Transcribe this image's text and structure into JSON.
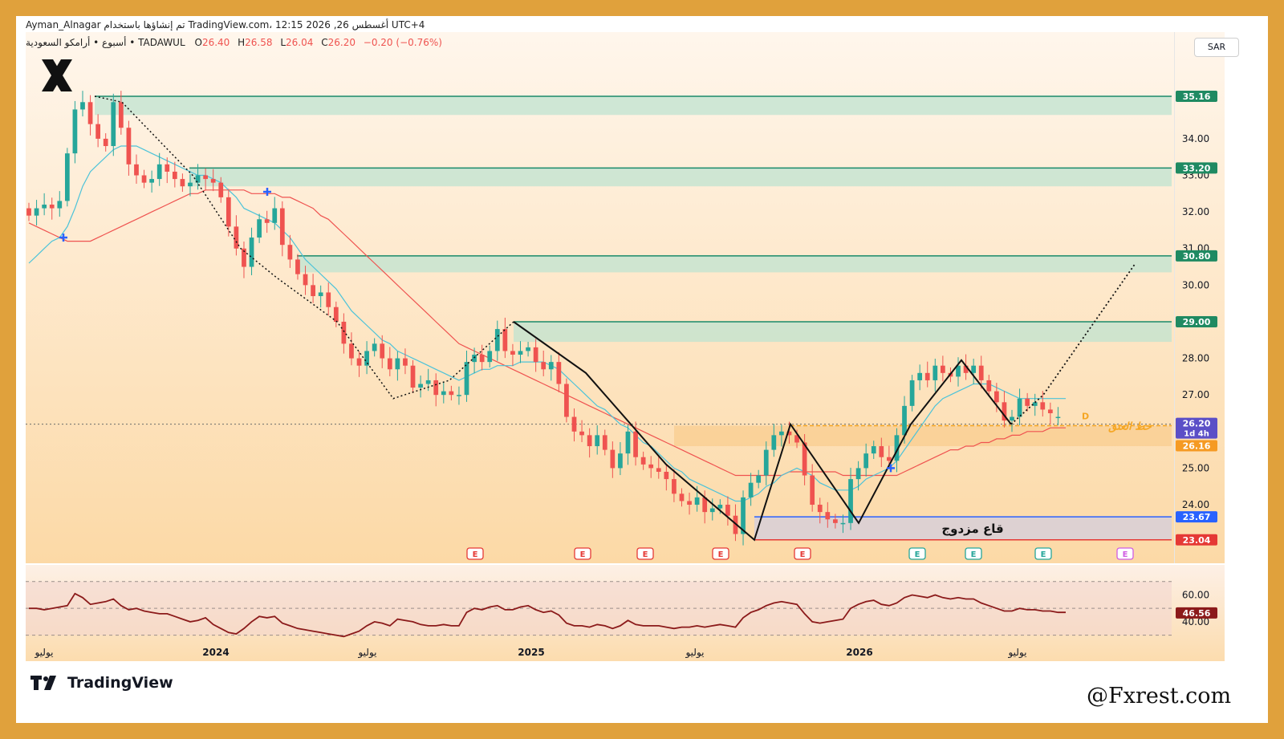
{
  "header": {
    "line1": "Ayman_Alnagar تم إنشاؤها باستخدام TradingView.com، 12:15 2026 ,26 أغسطس UTC+4",
    "symbol": "أسبوع • أرامكو السعودية • TADAWUL",
    "o_label": "O",
    "o_value": "26.40",
    "h_label": "H",
    "h_value": "26.58",
    "l_label": "L",
    "l_value": "26.04",
    "c_label": "C",
    "c_value": "26.20",
    "change": "−0.20 (−0.76%)"
  },
  "currency": "SAR",
  "brand": {
    "name": "TradingView",
    "watermark": "@Fxrest.com"
  },
  "colors": {
    "frame": "#e0a13c",
    "up": "#26a69a",
    "down": "#ef5350",
    "zone": "#bfe3d0",
    "zone_line": "#1a8a6a",
    "ma_fast": "#4cc3d9",
    "ma_slow": "#ef5350",
    "rsi": "#8b1a1a",
    "support_blue": "#2962ff",
    "support_red": "#e53935",
    "neck": "#f5a623"
  },
  "chart_data": [
    {
      "type": "candlestick",
      "ylim": [
        22.4,
        36.3
      ],
      "y_ticks": [
        "34.00",
        "33.00",
        "32.00",
        "31.00",
        "30.00",
        "29.00",
        "28.00",
        "27.00",
        "26.00",
        "25.00",
        "24.00"
      ],
      "x_ticks": [
        "يوليو",
        "2024",
        "يوليو",
        "2025",
        "يوليو",
        "2026",
        "يوليو"
      ],
      "zones": [
        {
          "top": 35.16,
          "bottom": 34.65,
          "label": "35.16"
        },
        {
          "top": 33.2,
          "bottom": 32.7,
          "label": "33.20"
        },
        {
          "top": 30.8,
          "bottom": 30.35,
          "label": "30.80"
        },
        {
          "top": 29.0,
          "bottom": 28.45,
          "label": "29.00"
        }
      ],
      "price_labels": [
        {
          "value": 26.2,
          "text": "26.20",
          "sub": "1d 4h",
          "color": "#5b4fc7"
        },
        {
          "value": 26.16,
          "text": "26.16",
          "color": "#f59a23"
        },
        {
          "value": 23.67,
          "text": "23.67",
          "color": "#2962ff"
        },
        {
          "value": 23.04,
          "text": "23.04",
          "color": "#e53935"
        }
      ],
      "annotations": {
        "double_bottom": "قاع مزدوج",
        "neckline": "خط العنق",
        "d_marker": "D"
      },
      "earnings_marker": "E",
      "closes": [
        31.9,
        32.1,
        32.2,
        32.1,
        32.3,
        33.6,
        34.8,
        35.0,
        34.4,
        34.0,
        33.8,
        35.0,
        34.3,
        33.3,
        33.0,
        32.8,
        32.9,
        33.3,
        33.1,
        32.9,
        32.7,
        32.8,
        33.0,
        32.9,
        32.8,
        32.4,
        31.6,
        31.0,
        30.5,
        31.3,
        31.8,
        31.7,
        32.1,
        31.1,
        30.7,
        30.3,
        30.0,
        29.7,
        29.8,
        29.4,
        29.0,
        28.4,
        28.0,
        27.8,
        28.2,
        28.4,
        28.0,
        27.7,
        28.0,
        27.8,
        27.2,
        27.3,
        27.4,
        27.0,
        27.1,
        27.0,
        27.0,
        27.9,
        28.1,
        27.9,
        28.2,
        28.8,
        28.2,
        28.1,
        28.2,
        28.3,
        27.9,
        27.7,
        27.9,
        27.3,
        26.4,
        26.0,
        25.9,
        25.6,
        25.9,
        25.5,
        25.0,
        25.4,
        26.0,
        25.3,
        25.1,
        25.0,
        24.9,
        24.7,
        24.3,
        24.1,
        24.0,
        24.2,
        23.8,
        23.9,
        24.0,
        23.7,
        23.2,
        24.2,
        24.6,
        24.8,
        25.5,
        25.9,
        26.0,
        25.9,
        25.7,
        24.8,
        24.0,
        23.8,
        23.6,
        23.5,
        23.5,
        24.7,
        25.0,
        25.4,
        25.6,
        25.3,
        25.2,
        25.9,
        26.7,
        27.4,
        27.6,
        27.4,
        27.8,
        27.6,
        27.5,
        27.8,
        27.6,
        27.8,
        27.4,
        27.1,
        26.8,
        26.3,
        26.4,
        26.9,
        26.7,
        26.8,
        26.6,
        26.5,
        26.4,
        26.2
      ],
      "opens": [
        32.1,
        31.9,
        32.1,
        32.2,
        32.1,
        32.3,
        33.6,
        34.8,
        35.0,
        34.4,
        34.0,
        33.8,
        35.0,
        34.3,
        33.3,
        33.0,
        32.8,
        32.9,
        33.3,
        33.1,
        32.9,
        32.7,
        32.8,
        33.0,
        32.9,
        32.8,
        32.4,
        31.6,
        31.0,
        30.5,
        31.3,
        31.8,
        31.7,
        32.1,
        31.1,
        30.7,
        30.3,
        30.0,
        29.7,
        29.8,
        29.4,
        29.0,
        28.4,
        28.0,
        27.8,
        28.2,
        28.4,
        28.0,
        27.7,
        28.0,
        27.8,
        27.2,
        27.3,
        27.4,
        27.0,
        27.1,
        27.0,
        27.0,
        27.9,
        28.1,
        27.9,
        28.2,
        28.8,
        28.2,
        28.1,
        28.2,
        28.3,
        27.9,
        27.7,
        27.9,
        27.3,
        26.4,
        26.0,
        25.9,
        25.6,
        25.9,
        25.5,
        25.0,
        25.4,
        26.0,
        25.3,
        25.1,
        25.0,
        24.9,
        24.7,
        24.3,
        24.1,
        24.0,
        24.2,
        23.8,
        23.9,
        24.0,
        23.7,
        23.2,
        24.2,
        24.6,
        24.8,
        25.5,
        25.9,
        26.0,
        25.9,
        25.7,
        24.8,
        24.0,
        23.8,
        23.6,
        23.5,
        23.5,
        24.7,
        25.0,
        25.4,
        25.6,
        25.3,
        25.2,
        25.9,
        26.7,
        27.4,
        27.6,
        27.4,
        27.8,
        27.6,
        27.5,
        27.8,
        27.6,
        27.8,
        27.4,
        27.1,
        26.8,
        26.3,
        26.4,
        26.9,
        26.7,
        26.8,
        26.6,
        26.4
      ],
      "ma_fast": [
        30.6,
        30.8,
        31.0,
        31.2,
        31.3,
        31.6,
        32.1,
        32.7,
        33.1,
        33.3,
        33.5,
        33.7,
        33.8,
        33.8,
        33.8,
        33.7,
        33.6,
        33.5,
        33.4,
        33.3,
        33.2,
        33.1,
        33.0,
        33.0,
        32.9,
        32.8,
        32.6,
        32.4,
        32.1,
        32.0,
        31.9,
        31.8,
        31.7,
        31.5,
        31.3,
        31.0,
        30.7,
        30.5,
        30.3,
        30.1,
        29.9,
        29.6,
        29.3,
        29.1,
        28.9,
        28.7,
        28.5,
        28.4,
        28.2,
        28.1,
        28.0,
        27.9,
        27.8,
        27.7,
        27.6,
        27.5,
        27.4,
        27.5,
        27.6,
        27.7,
        27.7,
        27.8,
        27.8,
        27.8,
        27.9,
        27.9,
        27.9,
        27.9,
        27.8,
        27.7,
        27.5,
        27.3,
        27.1,
        26.9,
        26.7,
        26.6,
        26.4,
        26.2,
        26.1,
        25.9,
        25.7,
        25.6,
        25.4,
        25.2,
        25.0,
        24.9,
        24.7,
        24.6,
        24.5,
        24.4,
        24.3,
        24.2,
        24.1,
        24.1,
        24.2,
        24.3,
        24.5,
        24.6,
        24.8,
        24.9,
        25.0,
        24.9,
        24.8,
        24.6,
        24.5,
        24.4,
        24.4,
        24.4,
        24.5,
        24.7,
        24.8,
        24.9,
        25.0,
        25.2,
        25.5,
        25.8,
        26.1,
        26.4,
        26.7,
        26.9,
        27.0,
        27.1,
        27.2,
        27.3,
        27.3,
        27.3,
        27.2,
        27.1,
        27.0,
        26.9,
        26.9,
        26.9,
        26.9,
        26.9,
        26.9,
        26.9
      ],
      "ma_slow": [
        31.7,
        31.6,
        31.5,
        31.4,
        31.3,
        31.2,
        31.2,
        31.2,
        31.2,
        31.3,
        31.4,
        31.5,
        31.6,
        31.7,
        31.8,
        31.9,
        32.0,
        32.1,
        32.2,
        32.3,
        32.4,
        32.5,
        32.5,
        32.6,
        32.6,
        32.6,
        32.6,
        32.6,
        32.6,
        32.5,
        32.5,
        32.5,
        32.5,
        32.4,
        32.4,
        32.3,
        32.2,
        32.1,
        31.9,
        31.8,
        31.6,
        31.4,
        31.2,
        31.0,
        30.8,
        30.6,
        30.4,
        30.2,
        30.0,
        29.8,
        29.6,
        29.4,
        29.2,
        29.0,
        28.8,
        28.6,
        28.4,
        28.3,
        28.2,
        28.1,
        28.0,
        27.9,
        27.8,
        27.7,
        27.6,
        27.5,
        27.4,
        27.3,
        27.2,
        27.1,
        27.0,
        26.9,
        26.8,
        26.7,
        26.6,
        26.5,
        26.4,
        26.3,
        26.2,
        26.1,
        26.0,
        25.9,
        25.8,
        25.7,
        25.6,
        25.5,
        25.4,
        25.3,
        25.2,
        25.1,
        25.0,
        24.9,
        24.8,
        24.8,
        24.8,
        24.8,
        24.8,
        24.8,
        24.8,
        24.9,
        24.9,
        24.9,
        24.9,
        24.9,
        24.9,
        24.9,
        24.8,
        24.8,
        24.8,
        24.8,
        24.8,
        24.8,
        24.8,
        24.8,
        24.9,
        25.0,
        25.1,
        25.2,
        25.3,
        25.4,
        25.5,
        25.5,
        25.6,
        25.6,
        25.7,
        25.7,
        25.8,
        25.8,
        25.9,
        25.9,
        26.0,
        26.0,
        26.0,
        26.1,
        26.1,
        26.1
      ]
    },
    {
      "type": "line",
      "name": "RSI",
      "ylim": [
        25,
        80
      ],
      "y_ticks": [
        "60.00",
        "40.00"
      ],
      "last_value": "46.56",
      "values": [
        50,
        50,
        49,
        50,
        51,
        52,
        61,
        58,
        53,
        54,
        55,
        57,
        52,
        49,
        50,
        48,
        47,
        46,
        46,
        44,
        42,
        40,
        41,
        43,
        38,
        35,
        32,
        31,
        35,
        40,
        44,
        43,
        44,
        39,
        37,
        35,
        34,
        33,
        32,
        31,
        30,
        29,
        31,
        33,
        37,
        40,
        39,
        37,
        42,
        41,
        40,
        38,
        37,
        37,
        38,
        37,
        37,
        47,
        50,
        49,
        51,
        52,
        49,
        49,
        51,
        52,
        49,
        47,
        48,
        45,
        39,
        37,
        37,
        36,
        38,
        37,
        35,
        37,
        41,
        38,
        37,
        37,
        37,
        36,
        35,
        36,
        36,
        37,
        36,
        37,
        38,
        37,
        36,
        43,
        47,
        49,
        52,
        54,
        55,
        54,
        53,
        46,
        40,
        39,
        40,
        41,
        42,
        50,
        53,
        55,
        56,
        53,
        52,
        54,
        58,
        60,
        59,
        58,
        60,
        58,
        57,
        58,
        57,
        57,
        54,
        52,
        50,
        48,
        48,
        50,
        49,
        49,
        48,
        48,
        47,
        47
      ]
    }
  ]
}
